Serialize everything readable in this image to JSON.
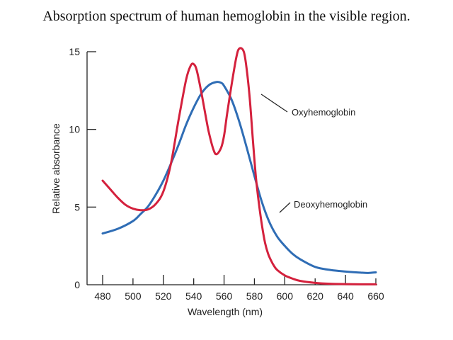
{
  "chart_data": {
    "type": "line",
    "title": "Absorption spectrum of human hemoglobin in the visible region.",
    "xlabel": "Wavelength (nm)",
    "ylabel": "Relative absorbance",
    "xlim": [
      470,
      665
    ],
    "ylim": [
      0,
      15
    ],
    "x_ticks": [
      480,
      500,
      520,
      540,
      560,
      580,
      600,
      620,
      640,
      660
    ],
    "y_ticks": [
      0,
      5,
      10,
      15
    ],
    "grid": false,
    "series": [
      {
        "name": "Oxyhemoglobin",
        "color": "#d4213d",
        "x": [
          480,
          485,
          490,
          495,
          500,
          505,
          510,
          515,
          520,
          525,
          530,
          535,
          538,
          540,
          542,
          545,
          548,
          550,
          553,
          555,
          558,
          560,
          562,
          565,
          568,
          570,
          573,
          575,
          577,
          579,
          581,
          583,
          585,
          587,
          589,
          591,
          593,
          595,
          600,
          605,
          610,
          620,
          630,
          640,
          650,
          660
        ],
        "y": [
          6.7,
          6.15,
          5.6,
          5.15,
          4.9,
          4.8,
          4.85,
          5.2,
          6.0,
          7.8,
          10.6,
          13.2,
          14.1,
          14.2,
          13.8,
          12.4,
          10.8,
          9.8,
          8.7,
          8.4,
          8.8,
          9.6,
          11.0,
          12.9,
          14.6,
          15.2,
          15.0,
          13.8,
          11.9,
          9.3,
          6.9,
          5.2,
          3.8,
          2.7,
          2.0,
          1.55,
          1.2,
          0.95,
          0.6,
          0.4,
          0.25,
          0.12,
          0.06,
          0.04,
          0.03,
          0.03
        ]
      },
      {
        "name": "Deoxyhemoglobin",
        "color": "#2f6db5",
        "x": [
          480,
          490,
          500,
          505,
          510,
          515,
          520,
          525,
          530,
          535,
          540,
          545,
          550,
          555,
          558,
          560,
          565,
          570,
          575,
          580,
          585,
          590,
          595,
          600,
          605,
          610,
          620,
          630,
          640,
          650,
          655,
          660
        ],
        "y": [
          3.3,
          3.6,
          4.1,
          4.55,
          5.05,
          5.8,
          6.7,
          7.8,
          9.0,
          10.3,
          11.4,
          12.3,
          12.85,
          13.05,
          13.0,
          12.8,
          11.9,
          10.5,
          8.8,
          7.0,
          5.3,
          4.0,
          3.1,
          2.5,
          2.0,
          1.65,
          1.15,
          0.95,
          0.85,
          0.78,
          0.76,
          0.8
        ]
      }
    ],
    "annotations": [
      {
        "text": "Oxyhemoglobin",
        "target_series": "Oxyhemoglobin"
      },
      {
        "text": "Deoxyhemoglobin",
        "target_series": "Deoxyhemoglobin"
      }
    ]
  }
}
